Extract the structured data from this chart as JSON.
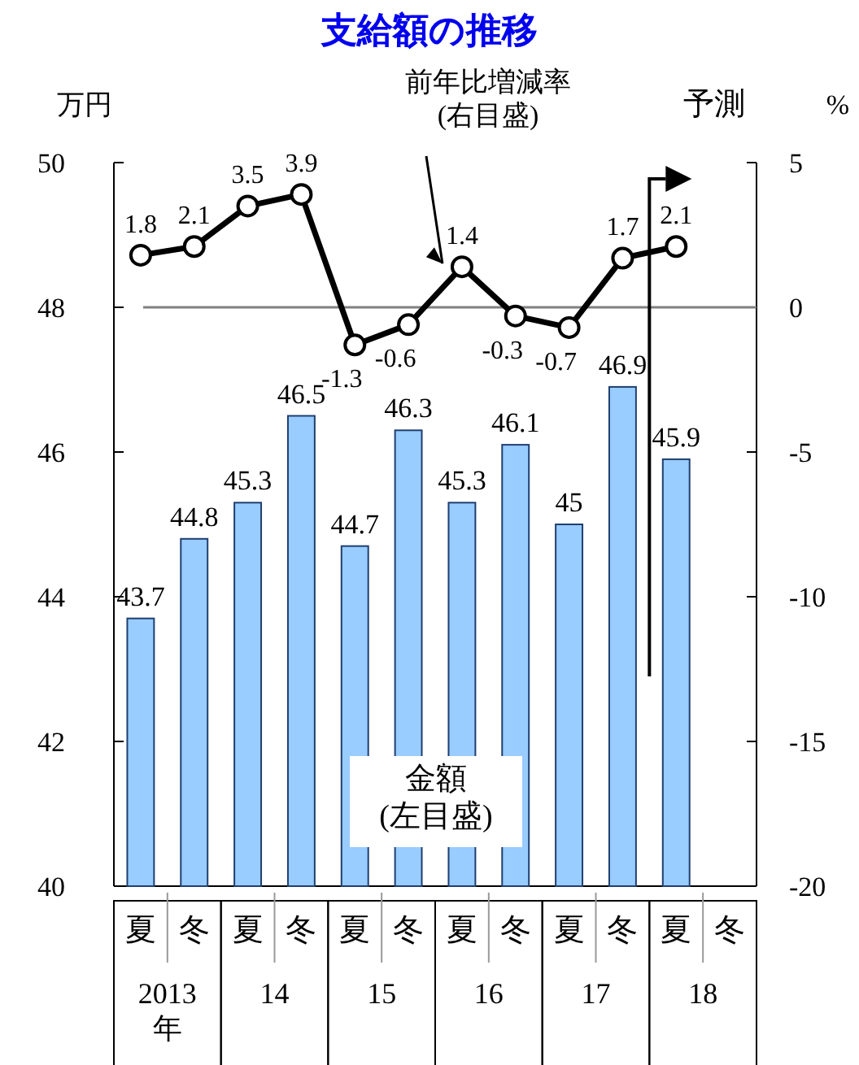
{
  "chart_data": {
    "type": "bar",
    "title": "支給額の推移",
    "ylabel": "万円",
    "y2label": "%",
    "categories": [
      "夏",
      "冬",
      "夏",
      "冬",
      "夏",
      "冬",
      "夏",
      "冬",
      "夏",
      "冬",
      "夏",
      "冬"
    ],
    "series": [
      {
        "name": "金額\n(左目盛)",
        "color": "#99ccff",
        "values": [
          43.7,
          44.8,
          45.3,
          46.5,
          44.7,
          46.3,
          45.3,
          46.1,
          45.0,
          46.9,
          45.9,
          null
        ]
      },
      {
        "name": "前年比増減率\n(右目盛)",
        "type": "line",
        "axis": "y2",
        "color": "#000000",
        "marker": "circle",
        "values": [
          1.8,
          2.1,
          3.5,
          3.9,
          -1.3,
          -0.6,
          1.4,
          -0.3,
          -0.7,
          1.7,
          2.1,
          null
        ]
      }
    ],
    "ylim": [
      40,
      50
    ],
    "yticks": [
      40,
      42,
      44,
      46,
      48,
      50
    ],
    "y2lim": [
      -20,
      5
    ],
    "y2ticks": [
      -20,
      -15,
      -10,
      -5,
      0,
      5
    ],
    "ref_lines": [
      {
        "axis": "y2",
        "value": 0,
        "color": "#808080"
      }
    ],
    "data_labels": true,
    "grid": false,
    "legend": false,
    "annotations": [
      "2013年",
      "14",
      "15",
      "16",
      "17",
      "18",
      "予測"
    ]
  }
}
